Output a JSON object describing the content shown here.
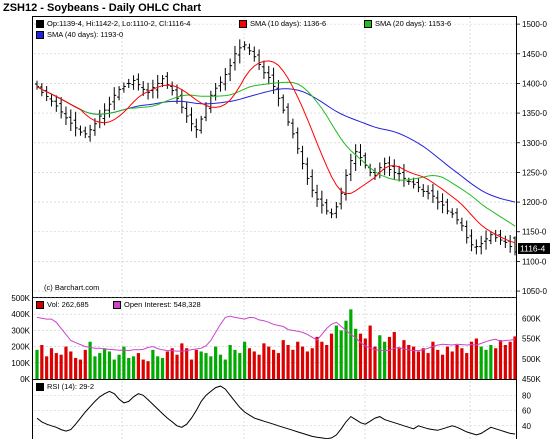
{
  "title": "ZSH12 - Soybeans - Daily OHLC Chart",
  "price_panel": {
    "ohlc_readout": "Op:1139-4, Hi:1142-2, Lo:1110-2, Cl:1116-4",
    "legend": [
      {
        "label": "SMA (10 days): 1136-6",
        "color": "#ff0000"
      },
      {
        "label": "SMA (20 days): 1153-6",
        "color": "#22bb22"
      },
      {
        "label": "SMA (40 days): 1193-0",
        "color": "#2222dd"
      }
    ],
    "last_price_label": "1116-4",
    "watermark": "(c) Barchart.com"
  },
  "volume_panel": {
    "legend": [
      {
        "label": "Vol: 262,685",
        "color": "#cc0000"
      },
      {
        "label": "Open Interest: 548,328",
        "color": "#cc44cc"
      }
    ]
  },
  "rsi_panel": {
    "legend": [
      {
        "label": "RSI (14): 29-2",
        "color": "#000000"
      }
    ]
  },
  "colors": {
    "up": "#00aa00",
    "down": "#dd0000",
    "oi": "#cc44cc",
    "sma10": "#ff0000",
    "sma20": "#22bb22",
    "sma40": "#2222dd"
  },
  "chart_data": [
    {
      "type": "ohlc",
      "title": "ZSH12 - Soybeans - Daily OHLC Chart",
      "y_ticks": [
        1050,
        1100,
        1150,
        1200,
        1250,
        1300,
        1350,
        1400,
        1450,
        1500
      ],
      "ylim": [
        1040,
        1512
      ],
      "close": [
        1395,
        1385,
        1378,
        1370,
        1362,
        1352,
        1342,
        1333,
        1325,
        1318,
        1315,
        1322,
        1332,
        1345,
        1355,
        1365,
        1380,
        1390,
        1395,
        1400,
        1405,
        1398,
        1390,
        1385,
        1393,
        1400,
        1408,
        1398,
        1388,
        1375,
        1360,
        1345,
        1332,
        1322,
        1340,
        1362,
        1380,
        1392,
        1402,
        1415,
        1430,
        1450,
        1460,
        1465,
        1455,
        1445,
        1432,
        1418,
        1410,
        1395,
        1375,
        1355,
        1335,
        1315,
        1290,
        1265,
        1240,
        1220,
        1205,
        1195,
        1185,
        1180,
        1192,
        1215,
        1245,
        1270,
        1285,
        1275,
        1262,
        1250,
        1245,
        1258,
        1265,
        1255,
        1250,
        1248,
        1240,
        1235,
        1230,
        1225,
        1218,
        1215,
        1210,
        1200,
        1195,
        1185,
        1180,
        1170,
        1160,
        1140,
        1128,
        1125,
        1130,
        1138,
        1145,
        1140,
        1136,
        1132,
        1125,
        1116
      ],
      "sma10_last": 1136.75,
      "sma20_last": 1153.75,
      "sma40_last": 1193.0,
      "last": {
        "open": 1139.5,
        "high": 1142.25,
        "low": 1110.25,
        "close": 1116.5
      }
    },
    {
      "type": "bar",
      "title": "Volume / Open Interest",
      "y_ticks_left": [
        "0K",
        "100K",
        "200K",
        "300K",
        "400K",
        "500K"
      ],
      "y_ticks_right": [
        "450K",
        "500K",
        "550K",
        "600K"
      ],
      "volume": [
        180,
        210,
        140,
        190,
        160,
        150,
        200,
        170,
        130,
        120,
        180,
        230,
        140,
        160,
        190,
        170,
        120,
        150,
        200,
        130,
        140,
        160,
        120,
        110,
        180,
        140,
        130,
        170,
        190,
        150,
        220,
        190,
        120,
        180,
        170,
        160,
        140,
        200,
        150,
        120,
        210,
        180,
        160,
        230,
        190,
        170,
        150,
        220,
        200,
        180,
        160,
        240,
        210,
        180,
        230,
        200,
        170,
        190,
        260,
        230,
        210,
        280,
        330,
        300,
        360,
        430,
        310,
        280,
        250,
        330,
        200,
        270,
        230,
        260,
        290,
        190,
        240,
        210,
        200,
        170,
        190,
        160,
        230,
        180,
        150,
        200,
        170,
        210,
        190,
        160,
        230,
        250,
        200,
        180,
        210,
        190,
        240,
        210,
        230,
        263
      ],
      "open_interest": [
        602,
        600,
        598,
        598,
        590,
        575,
        560,
        545,
        540,
        535,
        530,
        528,
        526,
        526,
        524,
        523,
        522,
        521,
        521,
        520,
        522,
        522,
        523,
        528,
        530,
        525,
        522,
        520,
        520,
        519,
        519,
        520,
        522,
        524,
        526,
        532,
        545,
        565,
        585,
        602,
        605,
        602,
        600,
        598,
        602,
        601,
        596,
        594,
        590,
        585,
        582,
        580,
        572,
        570,
        568,
        565,
        560,
        553,
        546,
        560,
        575,
        585,
        590,
        580,
        570,
        560,
        552,
        540,
        532,
        526,
        522,
        521,
        520,
        521,
        526,
        528,
        524,
        522,
        520,
        520,
        522,
        526,
        530,
        534,
        536,
        535,
        534,
        536,
        535,
        534,
        535,
        534,
        538,
        542,
        546,
        548,
        543,
        545,
        546,
        548
      ]
    },
    {
      "type": "line",
      "title": "RSI (14)",
      "y_ticks": [
        40,
        60,
        80
      ],
      "rsi": [
        50,
        45,
        42,
        40,
        38,
        35,
        33,
        35,
        42,
        50,
        58,
        65,
        72,
        78,
        82,
        85,
        82,
        75,
        70,
        72,
        78,
        82,
        80,
        74,
        68,
        62,
        56,
        50,
        45,
        40,
        38,
        42,
        50,
        60,
        72,
        80,
        85,
        90,
        92,
        88,
        80,
        72,
        64,
        58,
        54,
        50,
        48,
        46,
        44,
        42,
        40,
        38,
        36,
        34,
        32,
        30,
        28,
        26,
        25,
        24,
        23,
        24,
        28,
        36,
        45,
        52,
        48,
        44,
        42,
        46,
        50,
        52,
        48,
        46,
        44,
        42,
        40,
        38,
        36,
        40,
        38,
        36,
        35,
        34,
        36,
        38,
        40,
        38,
        35,
        32,
        30,
        28,
        30,
        34,
        38,
        36,
        34,
        32,
        30,
        29.2
      ]
    }
  ]
}
